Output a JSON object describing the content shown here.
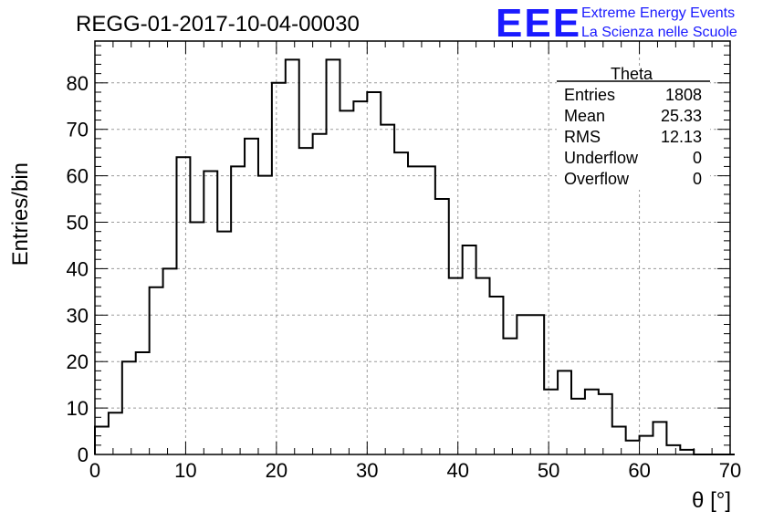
{
  "header": {
    "run_title": "REGG-01-2017-10-04-00030",
    "logo_text": "EEE",
    "org_line1": "Extreme Energy Events",
    "org_line2": "La Scienza nelle Scuole",
    "brand_color": "#1a1aff"
  },
  "stats_box": {
    "title": "Theta",
    "rows": [
      {
        "label": "Entries",
        "value": "1808"
      },
      {
        "label": "Mean",
        "value": "25.33"
      },
      {
        "label": "RMS",
        "value": "12.13"
      },
      {
        "label": "Underflow",
        "value": "0"
      },
      {
        "label": "Overflow",
        "value": "0"
      }
    ]
  },
  "chart_data": {
    "type": "bar",
    "histogram": true,
    "xlabel": "θ [°]",
    "ylabel": "Entries/bin",
    "xlim": [
      0,
      70
    ],
    "ylim": [
      0,
      89
    ],
    "grid": true,
    "bin_width": 1.5,
    "bin_edges_start": 0,
    "x_ticks": [
      0,
      10,
      20,
      30,
      40,
      50,
      60,
      70
    ],
    "y_ticks": [
      0,
      10,
      20,
      30,
      40,
      50,
      60,
      70,
      80
    ],
    "values": [
      6,
      9,
      20,
      22,
      36,
      40,
      64,
      50,
      61,
      48,
      62,
      68,
      60,
      80,
      85,
      66,
      69,
      85,
      74,
      76,
      78,
      71,
      65,
      62,
      62,
      55,
      38,
      45,
      38,
      34,
      25,
      30,
      30,
      14,
      18,
      12,
      14,
      13,
      6,
      3,
      4,
      7,
      2,
      1,
      0,
      0,
      0
    ]
  }
}
